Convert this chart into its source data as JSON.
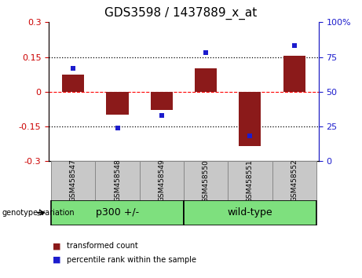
{
  "title": "GDS3598 / 1437889_x_at",
  "samples": [
    "GSM458547",
    "GSM458548",
    "GSM458549",
    "GSM458550",
    "GSM458551",
    "GSM458552"
  ],
  "red_bars": [
    0.075,
    -0.1,
    -0.08,
    0.1,
    -0.235,
    0.155
  ],
  "blue_dots": [
    67,
    24,
    33,
    78,
    18,
    83
  ],
  "ylim_left": [
    -0.3,
    0.3
  ],
  "ylim_right": [
    0,
    100
  ],
  "yticks_left": [
    -0.3,
    -0.15,
    0,
    0.15,
    0.3
  ],
  "yticks_right": [
    0,
    25,
    50,
    75,
    100
  ],
  "hlines_dotted": [
    0.15,
    -0.15
  ],
  "hline_zero": 0,
  "bar_color": "#8B1A1A",
  "dot_color": "#1C1CCD",
  "bar_width": 0.5,
  "group1_label": "p300 +/-",
  "group1_indices": [
    0,
    1,
    2
  ],
  "group2_label": "wild-type",
  "group2_indices": [
    3,
    4,
    5
  ],
  "group_color": "#7EE07E",
  "xlabel_bg": "#C8C8C8",
  "xlabel_border": "#888888",
  "title_fontsize": 11,
  "tick_fontsize": 8,
  "sample_fontsize": 6.5,
  "group_fontsize": 9,
  "legend_label_red": "transformed count",
  "legend_label_blue": "percentile rank within the sample",
  "genotype_label": "genotype/variation"
}
